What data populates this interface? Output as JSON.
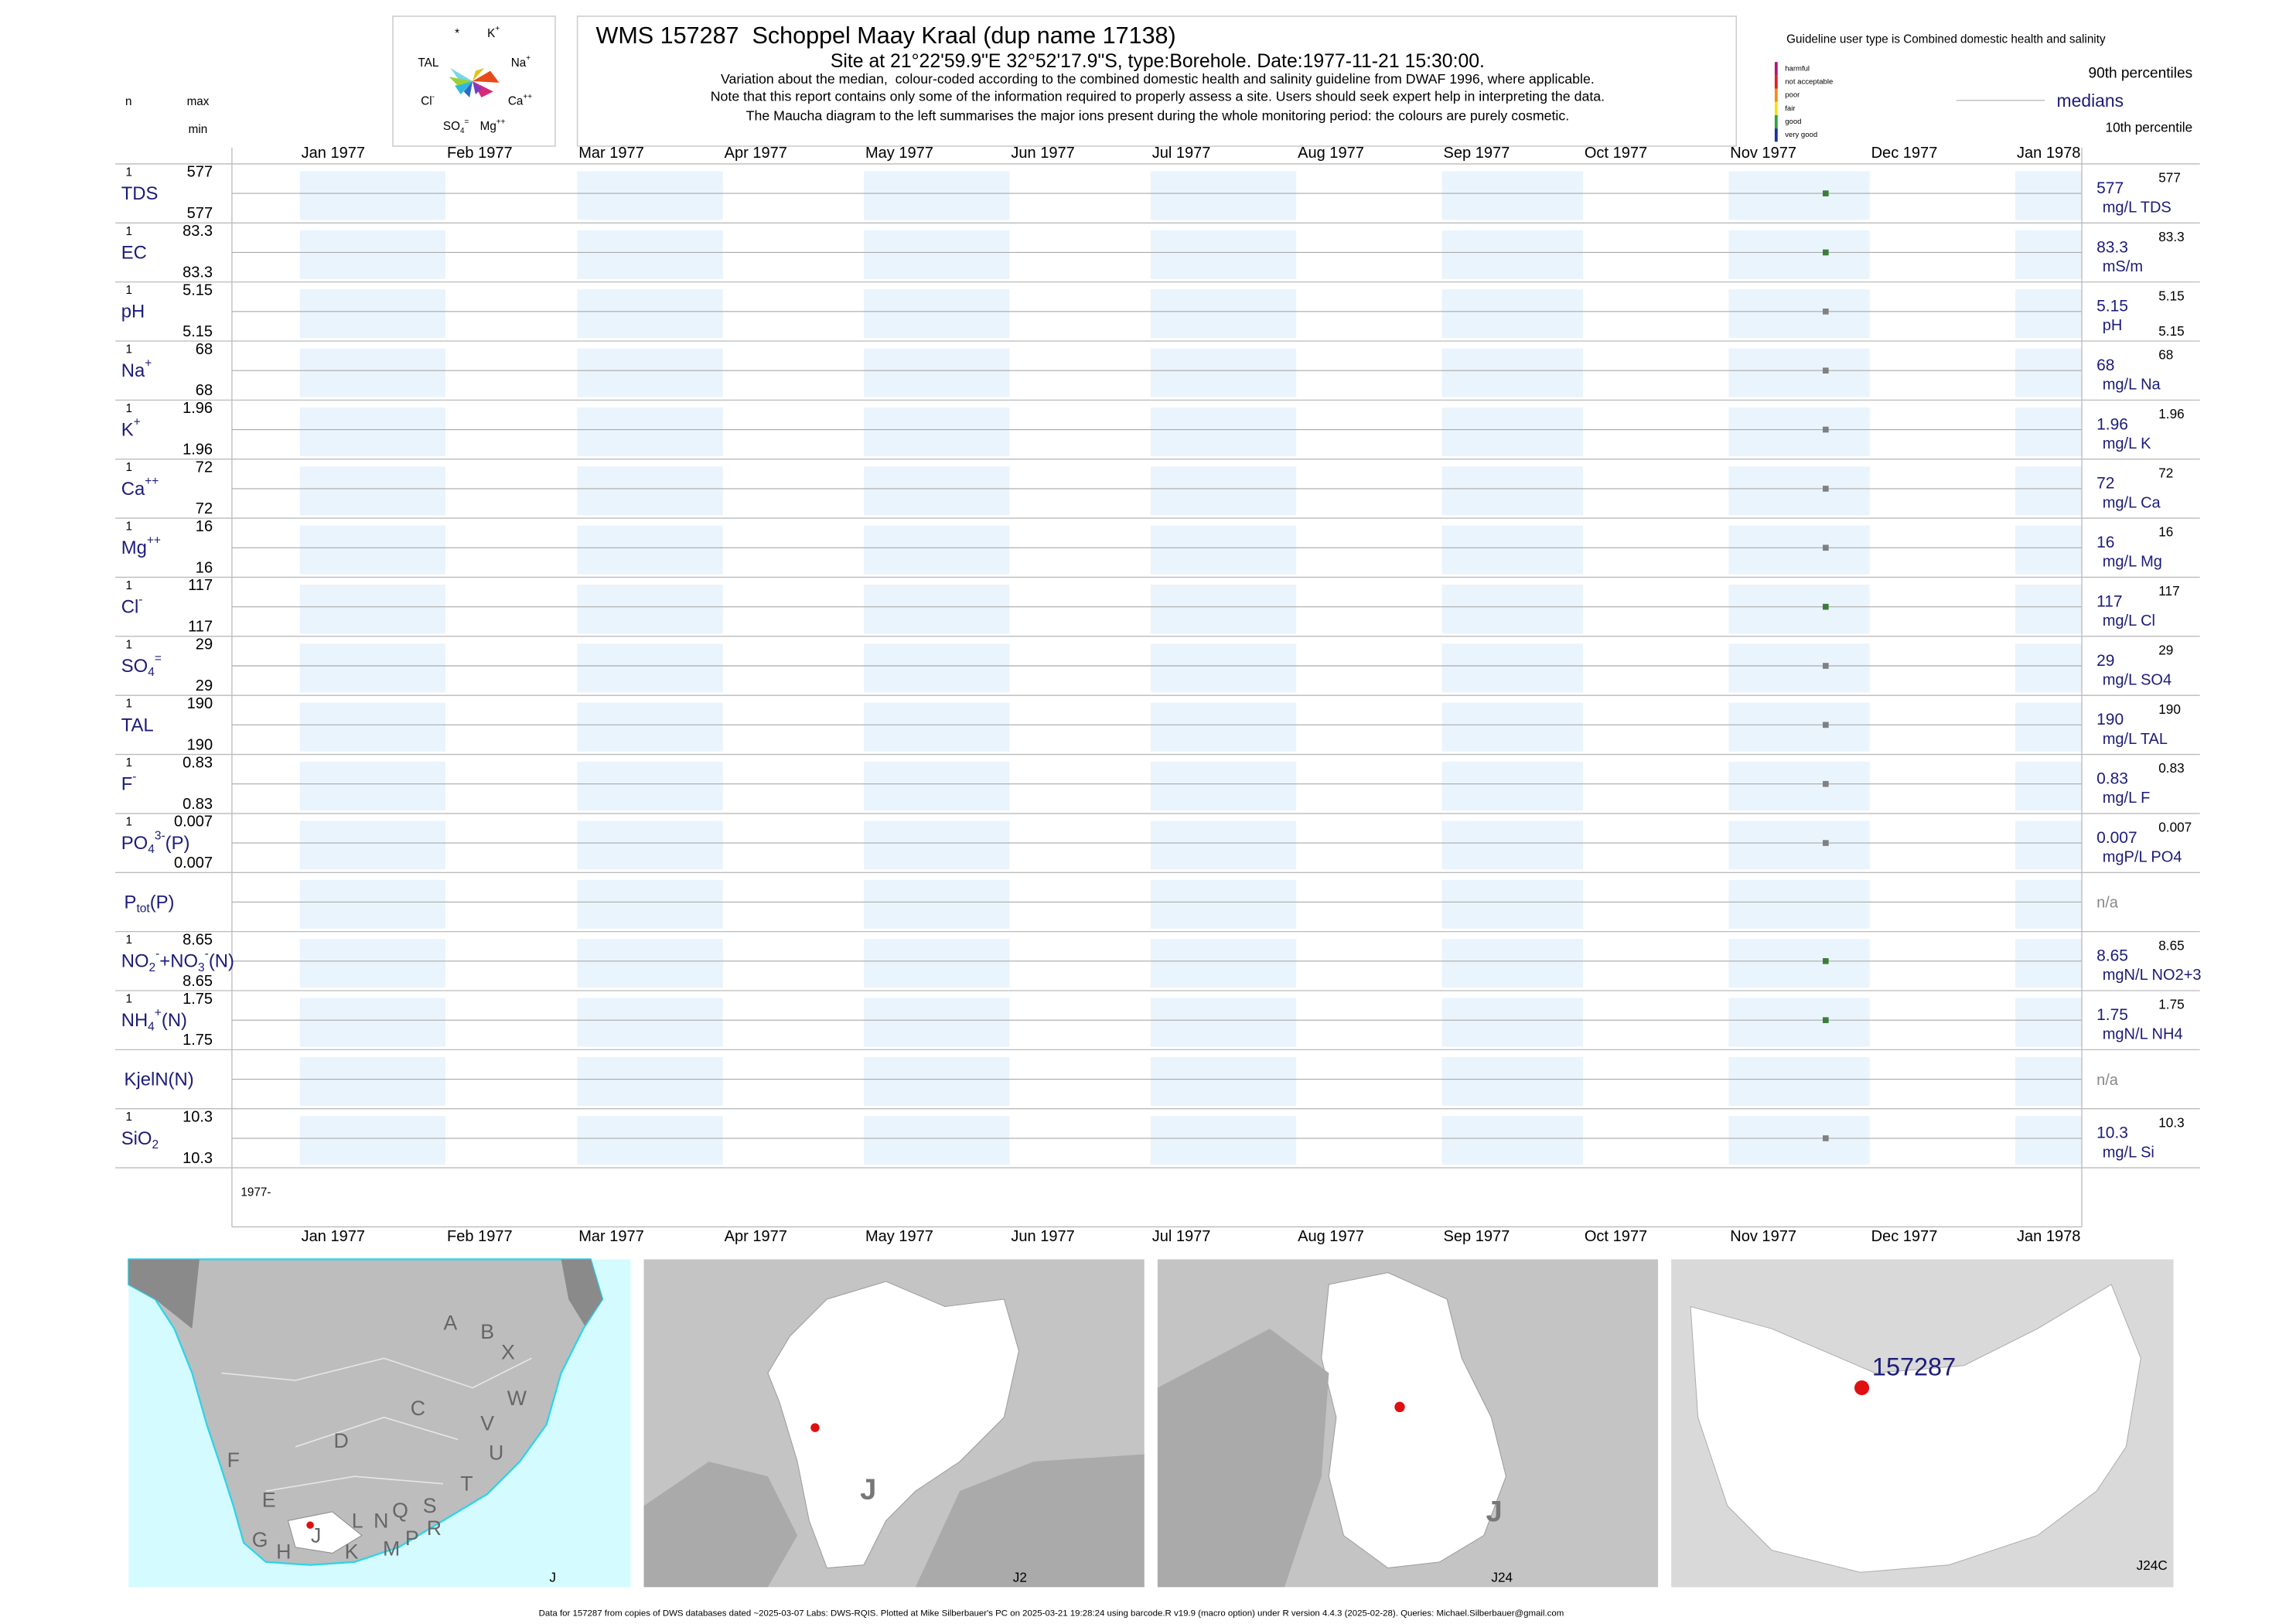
{
  "header": {
    "title": "WMS 157287  Schoppel Maay Kraal (dup name 17138)",
    "site_prefix": "Site at 21°22'59.9\"E 32°52'17.9\"S, type:Borehole. Date:",
    "sample_date": "1977-11-21 15:30:00",
    "site_suffix": ".",
    "notes": [
      "Variation about the median,  colour-coded according to the combined domestic health and salinity guideline from DWAF 1996, where applicable.",
      "Note that this report contains only some of the information required to properly assess a site. Users should seek expert help in interpreting the data.",
      "The Maucha diagram to the left summarises the major ions present during the whole monitoring period: the colours are purely cosmetic."
    ]
  },
  "maucha": [
    [
      {
        "text": "*"
      }
    ],
    [
      {
        "text": "K"
      },
      {
        "text": "+",
        "sup": true
      }
    ],
    [
      {
        "text": "TAL"
      }
    ],
    [
      {
        "text": "Na"
      },
      {
        "text": "+",
        "sup": true
      }
    ],
    [
      {
        "text": "Cl"
      },
      {
        "text": "-",
        "sup": true
      }
    ],
    [
      {
        "text": "Ca"
      },
      {
        "text": "++",
        "sup": true
      }
    ],
    [
      {
        "text": "SO"
      },
      {
        "text": "4",
        "sub": true
      },
      {
        "text": "=",
        "sup": true
      }
    ],
    [
      {
        "text": "Mg"
      },
      {
        "text": "++",
        "sup": true
      }
    ]
  ],
  "columns": {
    "n": "n",
    "max": "max",
    "min": "min"
  },
  "legend": {
    "guideline": "Guideline user type is Combined domestic health and salinity",
    "classes": [
      {
        "name": "harmful",
        "color": "#b0167a"
      },
      {
        "name": "not acceptable",
        "color": "#e0201b"
      },
      {
        "name": "poor",
        "color": "#f28c1a"
      },
      {
        "name": "fair",
        "color": "#f2e21a"
      },
      {
        "name": "good",
        "color": "#2fa33a"
      },
      {
        "name": "very good",
        "color": "#1a2fa3"
      }
    ],
    "p90": "90th percentiles",
    "median": "medians",
    "p10": "10th percentile"
  },
  "months": [
    "Jan 1977",
    "Feb 1977",
    "Mar 1977",
    "Apr 1977",
    "May 1977",
    "Jun 1977",
    "Jul 1977",
    "Aug 1977",
    "Sep 1977",
    "Oct 1977",
    "Nov 1977",
    "Dec 1977",
    "Jan 1978"
  ],
  "axis_start": "1977-",
  "rows": [
    {
      "label": [
        {
          "text": "TDS"
        }
      ],
      "n": 1,
      "max": 577,
      "min": 577,
      "median": 577,
      "p90": 577,
      "unit": "mg/L TDS",
      "color": "#3a7d3a"
    },
    {
      "label": [
        {
          "text": "EC"
        }
      ],
      "n": 1,
      "max": 83.3,
      "min": 83.3,
      "median": 83.3,
      "p90": 83.3,
      "unit": "mS/m",
      "color": "#3a7d3a"
    },
    {
      "label": [
        {
          "text": "pH"
        }
      ],
      "n": 1,
      "max": 5.15,
      "min": 5.15,
      "median": 5.15,
      "p90": 5.15,
      "p10": 5.15,
      "unit": "pH",
      "color": "#808080"
    },
    {
      "label": [
        {
          "text": "Na"
        },
        {
          "text": "+",
          "sup": true
        }
      ],
      "n": 1,
      "max": 68,
      "min": 68,
      "median": 68,
      "p90": 68,
      "unit": "mg/L Na",
      "color": "#808080"
    },
    {
      "label": [
        {
          "text": "K"
        },
        {
          "text": "+",
          "sup": true
        }
      ],
      "n": 1,
      "max": 1.96,
      "min": 1.96,
      "median": 1.96,
      "p90": 1.96,
      "unit": "mg/L K",
      "color": "#808080"
    },
    {
      "label": [
        {
          "text": "Ca"
        },
        {
          "text": "++",
          "sup": true
        }
      ],
      "n": 1,
      "max": 72,
      "min": 72,
      "median": 72,
      "p90": 72,
      "unit": "mg/L Ca",
      "color": "#808080"
    },
    {
      "label": [
        {
          "text": "Mg"
        },
        {
          "text": "++",
          "sup": true
        }
      ],
      "n": 1,
      "max": 16,
      "min": 16,
      "median": 16,
      "p90": 16,
      "unit": "mg/L Mg",
      "color": "#808080"
    },
    {
      "label": [
        {
          "text": "Cl"
        },
        {
          "text": "-",
          "sup": true
        }
      ],
      "n": 1,
      "max": 117,
      "min": 117,
      "median": 117,
      "p90": 117,
      "unit": "mg/L Cl",
      "color": "#3a7d3a"
    },
    {
      "label": [
        {
          "text": "SO"
        },
        {
          "text": "4",
          "sub": true
        },
        {
          "text": "=",
          "sup": true
        }
      ],
      "n": 1,
      "max": 29,
      "min": 29,
      "median": 29,
      "p90": 29,
      "unit": "mg/L SO4",
      "color": "#808080"
    },
    {
      "label": [
        {
          "text": "TAL"
        }
      ],
      "n": 1,
      "max": 190,
      "min": 190,
      "median": 190,
      "p90": 190,
      "unit": "mg/L TAL",
      "color": "#808080"
    },
    {
      "label": [
        {
          "text": "F"
        },
        {
          "text": "-",
          "sup": true
        }
      ],
      "n": 1,
      "max": 0.83,
      "min": 0.83,
      "median": 0.83,
      "p90": 0.83,
      "unit": "mg/L F",
      "color": "#808080"
    },
    {
      "label": [
        {
          "text": "PO"
        },
        {
          "text": "4",
          "sub": true
        },
        {
          "text": "3-",
          "sup": true
        },
        {
          "text": "(P)"
        }
      ],
      "n": 1,
      "max": 0.007,
      "min": 0.007,
      "median": 0.007,
      "p90": 0.007,
      "unit": "mgP/L PO4",
      "color": "#808080"
    },
    {
      "label": [
        {
          "text": "P"
        },
        {
          "text": "tot",
          "sub": true
        },
        {
          "text": "(P)"
        }
      ],
      "note": "n/a"
    },
    {
      "label": [
        {
          "text": "NO"
        },
        {
          "text": "2",
          "sub": true
        },
        {
          "text": "-",
          "sup": true
        },
        {
          "text": "+NO"
        },
        {
          "text": "3",
          "sub": true
        },
        {
          "text": "-",
          "sup": true
        },
        {
          "text": "(N)"
        }
      ],
      "n": 1,
      "max": 8.65,
      "min": 8.65,
      "median": 8.65,
      "p90": 8.65,
      "unit": "mgN/L NO2+3",
      "color": "#3a7d3a"
    },
    {
      "label": [
        {
          "text": "NH"
        },
        {
          "text": "4",
          "sub": true
        },
        {
          "text": "+",
          "sup": true
        },
        {
          "text": "(N)"
        }
      ],
      "n": 1,
      "max": 1.75,
      "min": 1.75,
      "median": 1.75,
      "p90": 1.75,
      "unit": "mgN/L NH4",
      "color": "#3a7d3a"
    },
    {
      "label": [
        {
          "text": "KjelN(N)"
        }
      ],
      "note": "n/a"
    },
    {
      "label": [
        {
          "text": "SiO"
        },
        {
          "text": "2",
          "sub": true
        }
      ],
      "n": 1,
      "max": 10.3,
      "min": 10.3,
      "median": 10.3,
      "p90": 10.3,
      "unit": "mg/L Si",
      "color": "#808080"
    }
  ],
  "maps": {
    "regions": [
      "A",
      "B",
      "X",
      "C",
      "W",
      "V",
      "U",
      "D",
      "F",
      "T",
      "E",
      "S",
      "R",
      "Q",
      "L",
      "N",
      "P",
      "M",
      "K",
      "H",
      "G",
      "J"
    ],
    "panel1": "J",
    "panel2_region": "J",
    "panel2": "J2",
    "panel3_region": "J",
    "panel3": "J24",
    "site": "157287",
    "panel4": "J24C"
  },
  "footer": "Data for 157287 from copies of DWS databases dated ~2025-03-07 Labs: DWS-RQIS. Plotted at Mike Silberbauer's PC on 2025-03-21 19:28:24 using barcode.R v19.9 (macro option) under R version 4.4.3 (2025-02-28). Queries: Michael.Silberbauer@gmail.com"
}
